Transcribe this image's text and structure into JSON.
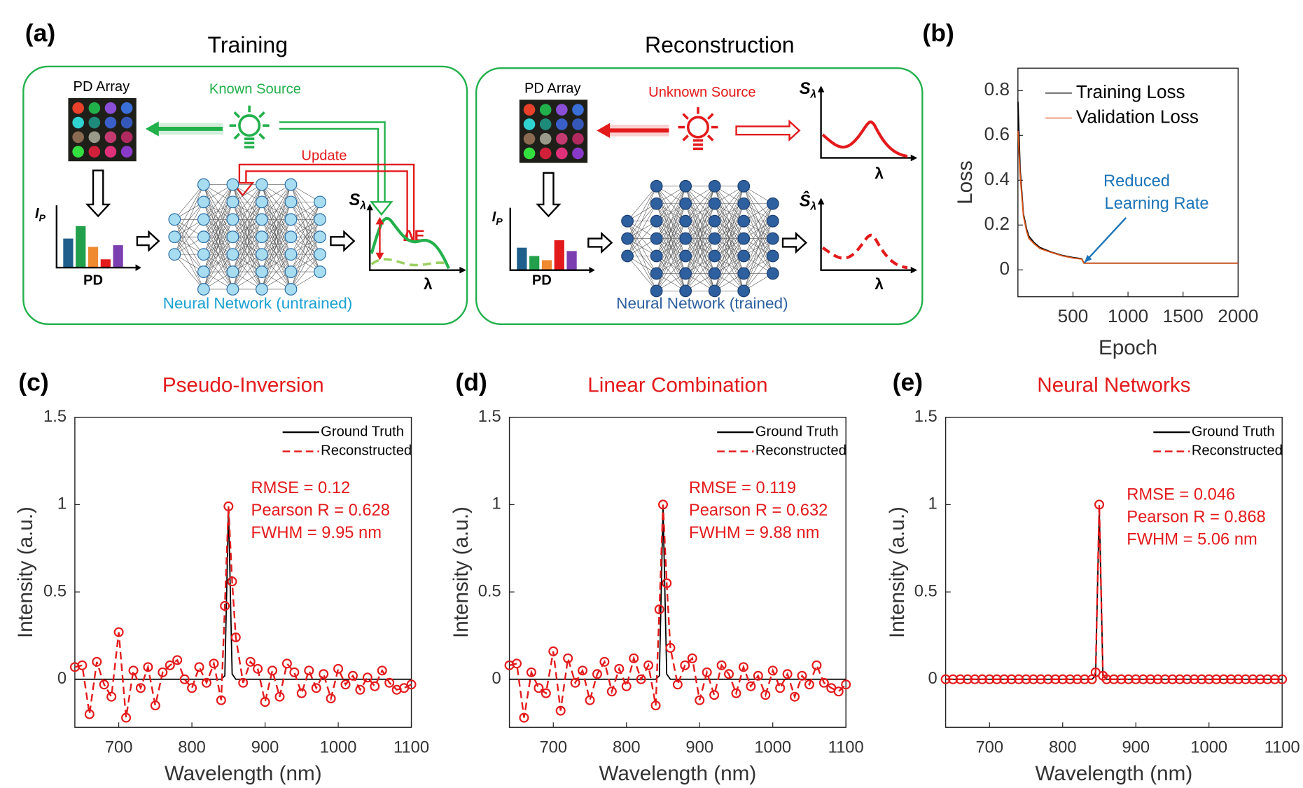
{
  "diagram": {
    "panel_label": "(a)",
    "training": {
      "title": "Training",
      "pd_array": "PD Array",
      "source": "Known Source",
      "update": "Update",
      "delta": "ΔE",
      "ip": {
        "main": "I",
        "sub": "P"
      },
      "pd": "PD",
      "network": "Neural Network (untrained)",
      "s": {
        "main": "S",
        "sub": "λ"
      },
      "lambda": "λ"
    },
    "reconstruction": {
      "title": "Reconstruction",
      "pd_array": "PD Array",
      "source": "Unknown Source",
      "ip": {
        "main": "I",
        "sub": "P"
      },
      "pd": "PD",
      "network": "Neural Network (trained)",
      "s": {
        "main": "S",
        "sub": "λ"
      },
      "s_hat": {
        "main": "Ŝ",
        "sub": "λ"
      },
      "lambda_top": "λ",
      "lambda_bottom": "λ"
    }
  },
  "chart_data": [
    {
      "type": "line",
      "panel_label": "(b)",
      "xlabel": "Epoch",
      "ylabel": "Loss",
      "x": [
        1,
        20,
        50,
        80,
        100,
        150,
        200,
        300,
        400,
        500,
        580,
        600,
        700,
        1000,
        1500,
        2000
      ],
      "series": [
        {
          "name": "Training Loss",
          "color": "#000000",
          "values": [
            0.75,
            0.45,
            0.25,
            0.18,
            0.15,
            0.12,
            0.1,
            0.08,
            0.065,
            0.055,
            0.05,
            0.03,
            0.03,
            0.03,
            0.03,
            0.03
          ]
        },
        {
          "name": "Validation Loss",
          "color": "#d95319",
          "values": [
            0.62,
            0.42,
            0.24,
            0.17,
            0.14,
            0.115,
            0.095,
            0.078,
            0.063,
            0.053,
            0.048,
            0.03,
            0.03,
            0.03,
            0.03,
            0.03
          ]
        }
      ],
      "xlim": [
        0,
        2000
      ],
      "ylim": [
        -0.12,
        0.9
      ],
      "xticks": [
        500,
        1000,
        1500,
        2000
      ],
      "yticks": [
        0,
        0.2,
        0.4,
        0.6,
        0.8
      ],
      "legend": "upper left",
      "annotations": [
        "Reduced",
        "Learning Rate"
      ],
      "annotation_color": "#1a73b8"
    },
    {
      "type": "line",
      "panel_label": "(c)",
      "title": "Pseudo-Inversion",
      "title_color": "#e31a1c",
      "xlabel": "Wavelength (nm)",
      "ylabel": "Intensity (a.u.)",
      "x": [
        640,
        650,
        660,
        670,
        680,
        690,
        700,
        710,
        720,
        730,
        740,
        750,
        760,
        770,
        780,
        790,
        800,
        810,
        820,
        830,
        840,
        845,
        850,
        855,
        860,
        870,
        880,
        890,
        900,
        910,
        920,
        930,
        940,
        950,
        960,
        970,
        980,
        990,
        1000,
        1010,
        1020,
        1030,
        1040,
        1050,
        1060,
        1070,
        1080,
        1090,
        1100
      ],
      "series": [
        {
          "name": "Ground Truth",
          "color": "#000000",
          "style": "solid",
          "values": [
            0,
            0,
            0,
            0,
            0,
            0,
            0,
            0,
            0,
            0,
            0,
            0,
            0,
            0,
            0,
            0,
            0,
            0,
            0,
            0,
            0,
            0.02,
            0.98,
            0.03,
            0,
            0,
            0,
            0,
            0,
            0,
            0,
            0,
            0,
            0,
            0,
            0,
            0,
            0,
            0,
            0,
            0,
            0,
            0,
            0,
            0,
            0,
            0,
            0,
            0
          ]
        },
        {
          "name": "Reconstructed",
          "color": "#e31a1c",
          "style": "dashed",
          "marker": "circle",
          "values": [
            0.07,
            0.08,
            -0.2,
            0.1,
            -0.03,
            -0.1,
            0.27,
            -0.22,
            0.05,
            -0.05,
            0.07,
            -0.15,
            0.04,
            0.08,
            0.11,
            0.0,
            -0.05,
            0.07,
            -0.02,
            0.09,
            -0.12,
            0.42,
            0.99,
            0.56,
            0.24,
            -0.02,
            0.1,
            0.06,
            -0.13,
            0.05,
            -0.1,
            0.09,
            0.04,
            -0.08,
            0.05,
            -0.05,
            0.03,
            -0.11,
            0.06,
            -0.03,
            0.02,
            -0.06,
            0.01,
            -0.04,
            0.05,
            -0.02,
            -0.06,
            -0.05,
            -0.03
          ]
        }
      ],
      "xlim": [
        640,
        1100
      ],
      "ylim": [
        -0.275,
        1.5
      ],
      "xticks": [
        700,
        800,
        900,
        1000,
        1100
      ],
      "yticks": [
        0,
        0.5,
        1,
        1.5
      ],
      "legend": "upper right",
      "annotations": [
        "RMSE = 0.12",
        "Pearson R = 0.628",
        "FWHM = 9.95 nm"
      ],
      "annotation_color": "#e31a1c"
    },
    {
      "type": "line",
      "panel_label": "(d)",
      "title": "Linear Combination",
      "title_color": "#e31a1c",
      "xlabel": "Wavelength (nm)",
      "ylabel": "Intensity (a.u.)",
      "x": [
        640,
        650,
        660,
        670,
        680,
        690,
        700,
        710,
        720,
        730,
        740,
        750,
        760,
        770,
        780,
        790,
        800,
        810,
        820,
        830,
        840,
        845,
        850,
        855,
        860,
        870,
        880,
        890,
        900,
        910,
        920,
        930,
        940,
        950,
        960,
        970,
        980,
        990,
        1000,
        1010,
        1020,
        1030,
        1040,
        1050,
        1060,
        1070,
        1080,
        1090,
        1100
      ],
      "series": [
        {
          "name": "Ground Truth",
          "color": "#000000",
          "style": "solid",
          "values": [
            0,
            0,
            0,
            0,
            0,
            0,
            0,
            0,
            0,
            0,
            0,
            0,
            0,
            0,
            0,
            0,
            0,
            0,
            0,
            0,
            0,
            0.02,
            0.98,
            0.03,
            0,
            0,
            0,
            0,
            0,
            0,
            0,
            0,
            0,
            0,
            0,
            0,
            0,
            0,
            0,
            0,
            0,
            0,
            0,
            0,
            0,
            0,
            0,
            0,
            0
          ]
        },
        {
          "name": "Reconstructed",
          "color": "#e31a1c",
          "style": "dashed",
          "marker": "circle",
          "values": [
            0.08,
            0.09,
            -0.22,
            0.04,
            -0.05,
            -0.08,
            0.16,
            -0.18,
            0.12,
            -0.02,
            0.05,
            -0.12,
            0.03,
            0.1,
            -0.07,
            0.06,
            -0.04,
            0.12,
            0.0,
            0.08,
            -0.15,
            0.4,
            1.0,
            0.55,
            0.18,
            -0.03,
            0.08,
            0.12,
            -0.12,
            0.04,
            -0.09,
            0.08,
            0.03,
            -0.08,
            0.07,
            -0.04,
            0.02,
            -0.09,
            0.05,
            -0.05,
            0.03,
            -0.1,
            0.02,
            -0.03,
            0.08,
            -0.02,
            -0.05,
            -0.07,
            -0.03
          ]
        }
      ],
      "xlim": [
        640,
        1100
      ],
      "ylim": [
        -0.275,
        1.5
      ],
      "xticks": [
        700,
        800,
        900,
        1000,
        1100
      ],
      "yticks": [
        0,
        0.5,
        1,
        1.5
      ],
      "legend": "upper right",
      "annotations": [
        "RMSE = 0.119",
        "Pearson R = 0.632",
        "FWHM = 9.88 nm"
      ],
      "annotation_color": "#e31a1c"
    },
    {
      "type": "line",
      "panel_label": "(e)",
      "title": "Neural Networks",
      "title_color": "#e31a1c",
      "xlabel": "Wavelength (nm)",
      "ylabel": "Intensity (a.u.)",
      "x": [
        640,
        650,
        660,
        670,
        680,
        690,
        700,
        710,
        720,
        730,
        740,
        750,
        760,
        770,
        780,
        790,
        800,
        810,
        820,
        830,
        840,
        845,
        850,
        855,
        860,
        870,
        880,
        890,
        900,
        910,
        920,
        930,
        940,
        950,
        960,
        970,
        980,
        990,
        1000,
        1010,
        1020,
        1030,
        1040,
        1050,
        1060,
        1070,
        1080,
        1090,
        1100
      ],
      "series": [
        {
          "name": "Ground Truth",
          "color": "#000000",
          "style": "solid",
          "values": [
            0,
            0,
            0,
            0,
            0,
            0,
            0,
            0,
            0,
            0,
            0,
            0,
            0,
            0,
            0,
            0,
            0,
            0,
            0,
            0,
            0,
            0.02,
            0.98,
            0.03,
            0,
            0,
            0,
            0,
            0,
            0,
            0,
            0,
            0,
            0,
            0,
            0,
            0,
            0,
            0,
            0,
            0,
            0,
            0,
            0,
            0,
            0,
            0,
            0,
            0
          ]
        },
        {
          "name": "Reconstructed",
          "color": "#e31a1c",
          "style": "dashed",
          "marker": "circle",
          "values": [
            0,
            0,
            0,
            0,
            0,
            0,
            0,
            0,
            0,
            0,
            0,
            0,
            0,
            0,
            0,
            0,
            0,
            0,
            0,
            0,
            0,
            0.04,
            1.0,
            0.02,
            0,
            0,
            0,
            0,
            0,
            0,
            0,
            0,
            0,
            0,
            0,
            0,
            0,
            0,
            0,
            0,
            0,
            0,
            0,
            0,
            0,
            0,
            0,
            0,
            0
          ]
        }
      ],
      "xlim": [
        640,
        1100
      ],
      "ylim": [
        -0.275,
        1.5
      ],
      "xticks": [
        700,
        800,
        900,
        1000,
        1100
      ],
      "yticks": [
        0,
        0.5,
        1,
        1.5
      ],
      "legend": "upper right",
      "annotations": [
        "RMSE = 0.046",
        "Pearson R = 0.868",
        "FWHM = 5.06 nm"
      ],
      "annotation_color": "#e31a1c"
    }
  ]
}
